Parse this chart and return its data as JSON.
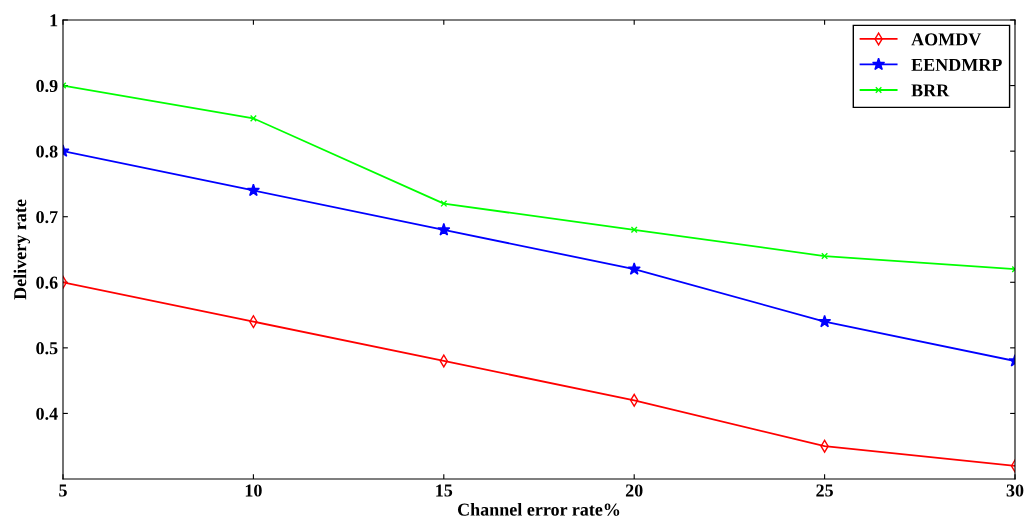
{
  "chart_data": {
    "type": "line",
    "xlabel": "Channel error rate%",
    "ylabel": "Delivery rate",
    "x": [
      5,
      10,
      15,
      20,
      25,
      30
    ],
    "series": [
      {
        "name": "AOMDV",
        "color": "#ff0000",
        "marker": "diamond",
        "values": [
          0.6,
          0.54,
          0.48,
          0.42,
          0.35,
          0.32
        ]
      },
      {
        "name": "EENDMRP",
        "color": "#0000ff",
        "marker": "star",
        "values": [
          0.8,
          0.74,
          0.68,
          0.62,
          0.54,
          0.48
        ]
      },
      {
        "name": "BRR",
        "color": "#00ff00",
        "marker": "cross",
        "values": [
          0.9,
          0.85,
          0.72,
          0.68,
          0.64,
          0.62
        ]
      }
    ],
    "xlim": [
      5,
      30
    ],
    "xticks": [
      5,
      10,
      15,
      20,
      25,
      30
    ],
    "ylim": [
      0.3,
      1
    ],
    "yticks": [
      0.4,
      0.5,
      0.6,
      0.7,
      0.8,
      0.9,
      1
    ],
    "grid": false,
    "legend": "top right",
    "line_style": "solid"
  }
}
